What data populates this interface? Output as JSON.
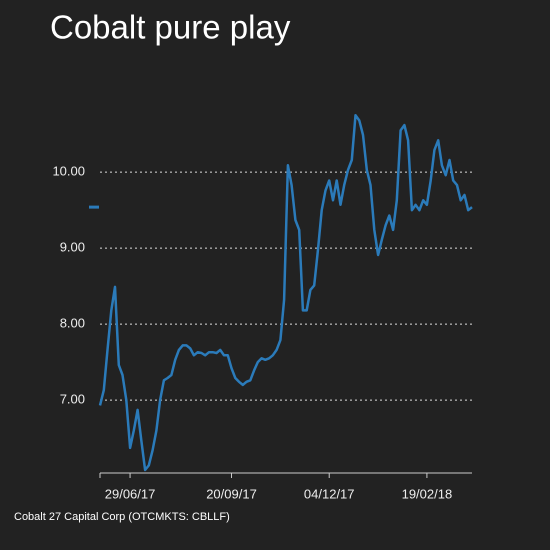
{
  "chart_data": {
    "type": "line",
    "title": "Cobalt pure play",
    "source": "Cobalt 27 Capital Corp (OTCMKTS: CBLLF)",
    "categories": [
      null,
      null,
      null,
      null,
      null,
      null,
      null,
      null,
      "29/06/17",
      null,
      null,
      null,
      null,
      null,
      null,
      null,
      null,
      null,
      null,
      null,
      null,
      null,
      null,
      null,
      null,
      null,
      null,
      null,
      null,
      null,
      null,
      null,
      null,
      null,
      null,
      "20/09/17",
      null,
      null,
      null,
      null,
      null,
      null,
      null,
      null,
      null,
      null,
      null,
      null,
      null,
      null,
      null,
      null,
      null,
      null,
      null,
      null,
      null,
      null,
      null,
      null,
      null,
      "04/12/17",
      null,
      null,
      null,
      null,
      null,
      null,
      null,
      null,
      null,
      null,
      null,
      null,
      null,
      null,
      null,
      null,
      null,
      null,
      null,
      null,
      null,
      null,
      null,
      null,
      null,
      "19/02/18",
      null,
      null,
      null,
      null,
      null,
      null,
      null,
      null,
      null,
      null,
      null,
      null
    ],
    "values": [
      6.93,
      7.13,
      7.66,
      8.18,
      8.49,
      7.46,
      7.33,
      7.0,
      6.37,
      6.6,
      6.87,
      6.47,
      6.08,
      6.14,
      6.34,
      6.6,
      7.0,
      7.26,
      7.29,
      7.33,
      7.53,
      7.66,
      7.72,
      7.72,
      7.68,
      7.59,
      7.63,
      7.62,
      7.59,
      7.63,
      7.63,
      7.62,
      7.66,
      7.59,
      7.59,
      7.42,
      7.29,
      7.24,
      7.2,
      7.24,
      7.26,
      7.39,
      7.5,
      7.55,
      7.53,
      7.55,
      7.59,
      7.66,
      7.79,
      8.32,
      10.09,
      9.83,
      9.37,
      9.24,
      8.18,
      8.18,
      8.45,
      8.51,
      8.97,
      9.5,
      9.76,
      9.89,
      9.63,
      9.89,
      9.57,
      9.83,
      10.03,
      10.16,
      10.75,
      10.68,
      10.49,
      10.03,
      9.83,
      9.24,
      8.91,
      9.11,
      9.3,
      9.43,
      9.24,
      9.63,
      10.55,
      10.62,
      10.42,
      9.5,
      9.57,
      9.5,
      9.63,
      9.57,
      9.89,
      10.29,
      10.42,
      10.09,
      9.96,
      10.16,
      9.89,
      9.83,
      9.63,
      9.7,
      9.5,
      9.54
    ],
    "color": "#2b7bba",
    "ylim": [
      6.04,
      10.95
    ],
    "yticks": [
      {
        "value": 7,
        "label": "7.00"
      },
      {
        "value": 8,
        "label": "8.00"
      },
      {
        "value": 9,
        "label": "9.00"
      },
      {
        "value": 10,
        "label": "10.00"
      }
    ],
    "grid": true
  }
}
